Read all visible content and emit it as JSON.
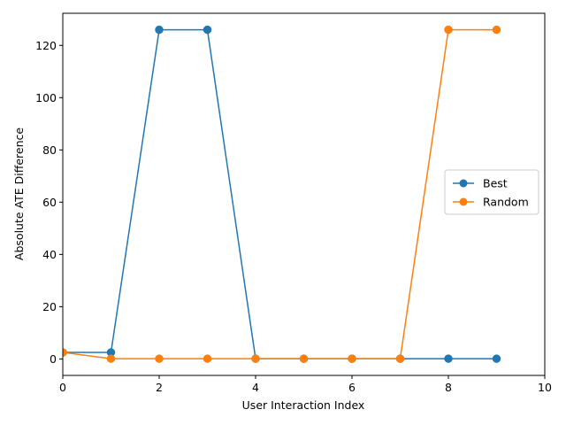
{
  "chart_data": {
    "type": "line",
    "title": "",
    "xlabel": "User Interaction Index",
    "ylabel": "Absolute ATE Difference",
    "xlim": [
      0,
      10
    ],
    "ylim": [
      -6.3,
      132.3
    ],
    "xticks": [
      0,
      2,
      4,
      6,
      8,
      10
    ],
    "yticks": [
      0,
      20,
      40,
      60,
      80,
      100,
      120
    ],
    "grid": false,
    "legend_position": "center-right",
    "x": [
      0,
      1,
      2,
      3,
      4,
      5,
      6,
      7,
      8,
      9
    ],
    "series": [
      {
        "name": "Best",
        "color": "#1f77b4",
        "marker": "circle",
        "values": [
          2.5,
          2.5,
          126,
          126,
          0.1,
          0.1,
          0.1,
          0.1,
          0.1,
          0.1
        ]
      },
      {
        "name": "Random",
        "color": "#ff7f0e",
        "marker": "circle",
        "values": [
          2.5,
          0.1,
          0.1,
          0.1,
          0.1,
          0.1,
          0.1,
          0.1,
          126,
          126
        ]
      }
    ]
  }
}
